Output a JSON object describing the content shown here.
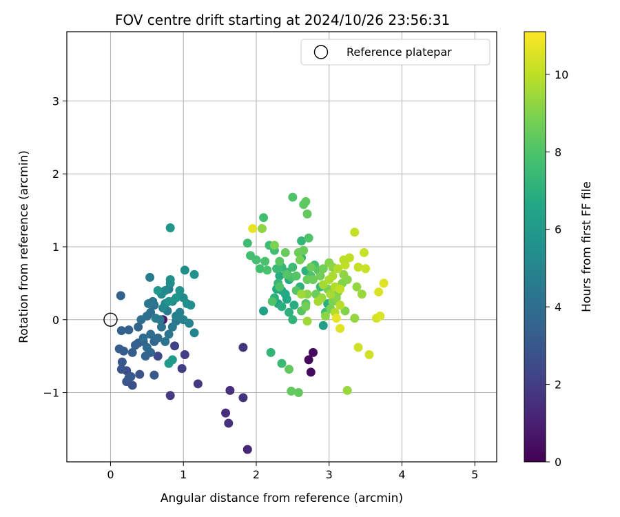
{
  "chart_data": {
    "type": "scatter",
    "title": "FOV centre drift starting at 2024/10/26 23:56:31",
    "xlabel": "Angular distance from reference (arcmin)",
    "ylabel": "Rotation from reference (arcmin)",
    "xlim": [
      -0.6,
      5.3
    ],
    "ylim": [
      -1.95,
      3.95
    ],
    "xticks": [
      0,
      1,
      2,
      3,
      4,
      5
    ],
    "yticks": [
      -1,
      0,
      1,
      2,
      3
    ],
    "xtick_labels": [
      "0",
      "1",
      "2",
      "3",
      "4",
      "5"
    ],
    "ytick_labels": [
      "−1",
      "0",
      "1",
      "2",
      "3"
    ],
    "grid": true,
    "legend": {
      "placement": "top-right",
      "entries": [
        "Reference platepar"
      ]
    },
    "reference": {
      "x": 0,
      "y": 0
    },
    "colorbar": {
      "label": "Hours from first FF file",
      "range": [
        0,
        11.1
      ],
      "ticks": [
        0,
        2,
        4,
        6,
        8,
        10
      ],
      "tick_labels": [
        "0",
        "2",
        "4",
        "6",
        "8",
        "10"
      ],
      "colormap": "viridis"
    },
    "points": [
      [
        2.72,
        -0.55,
        0.2
      ],
      [
        2.78,
        -0.45,
        0.3
      ],
      [
        2.75,
        -0.72,
        0.3
      ],
      [
        0.72,
        0.0,
        0.7
      ],
      [
        1.88,
        -1.78,
        1.2
      ],
      [
        1.58,
        -1.28,
        1.4
      ],
      [
        1.62,
        -1.42,
        1.5
      ],
      [
        1.64,
        -0.97,
        1.5
      ],
      [
        1.82,
        -1.07,
        1.6
      ],
      [
        1.82,
        -0.38,
        1.7
      ],
      [
        1.2,
        -0.88,
        1.8
      ],
      [
        0.82,
        -1.04,
        1.9
      ],
      [
        0.98,
        -0.67,
        2.0
      ],
      [
        1.02,
        -0.48,
        2.1
      ],
      [
        0.88,
        -0.36,
        2.2
      ],
      [
        0.65,
        -0.5,
        2.4
      ],
      [
        0.22,
        -0.7,
        2.6
      ],
      [
        0.3,
        -0.9,
        2.7
      ],
      [
        0.4,
        -0.75,
        2.8
      ],
      [
        0.22,
        -0.85,
        2.8
      ],
      [
        0.15,
        -0.68,
        2.9
      ],
      [
        0.16,
        -0.58,
        3.0
      ],
      [
        0.6,
        -0.76,
        3.0
      ],
      [
        0.25,
        -0.8,
        3.1
      ],
      [
        0.28,
        -0.78,
        3.2
      ],
      [
        0.18,
        -0.43,
        3.2
      ],
      [
        0.12,
        -0.4,
        3.3
      ],
      [
        0.3,
        -0.45,
        3.3
      ],
      [
        0.38,
        -0.32,
        3.4
      ],
      [
        0.34,
        -0.35,
        3.4
      ],
      [
        0.45,
        -0.3,
        3.5
      ],
      [
        0.15,
        -0.15,
        3.5
      ],
      [
        0.25,
        -0.14,
        3.5
      ],
      [
        0.14,
        0.33,
        3.5
      ],
      [
        0.38,
        -0.1,
        3.6
      ],
      [
        0.48,
        -0.5,
        3.6
      ],
      [
        0.55,
        -0.45,
        3.7
      ],
      [
        0.6,
        -0.3,
        3.7
      ],
      [
        0.5,
        -0.38,
        3.8
      ],
      [
        0.65,
        -0.25,
        3.8
      ],
      [
        0.45,
        -0.25,
        3.9
      ],
      [
        0.55,
        -0.2,
        3.9
      ],
      [
        0.42,
        0.0,
        4.0
      ],
      [
        0.5,
        0.05,
        4.0
      ],
      [
        0.6,
        0.2,
        4.1
      ],
      [
        0.55,
        0.1,
        4.1
      ],
      [
        0.7,
        -0.1,
        4.2
      ],
      [
        0.75,
        -0.3,
        4.2
      ],
      [
        0.8,
        -0.2,
        4.3
      ],
      [
        0.58,
        0.25,
        4.3
      ],
      [
        0.52,
        0.22,
        4.4
      ],
      [
        0.68,
        0.0,
        4.4
      ],
      [
        0.85,
        -0.1,
        4.5
      ],
      [
        0.9,
        -0.02,
        4.5
      ],
      [
        0.78,
        0.12,
        4.6
      ],
      [
        0.62,
        0.02,
        4.6
      ],
      [
        0.54,
        0.58,
        4.7
      ],
      [
        0.8,
        0.42,
        4.7
      ],
      [
        0.9,
        0.05,
        4.8
      ],
      [
        0.95,
        0.1,
        4.8
      ],
      [
        1.0,
        0.0,
        4.9
      ],
      [
        1.08,
        -0.05,
        4.9
      ],
      [
        1.15,
        -0.18,
        5.0
      ],
      [
        0.72,
        0.16,
        5.0
      ],
      [
        0.85,
        0.25,
        5.1
      ],
      [
        0.75,
        0.22,
        5.1
      ],
      [
        0.7,
        0.35,
        5.2
      ],
      [
        0.75,
        0.4,
        5.2
      ],
      [
        0.82,
        0.5,
        5.3
      ],
      [
        1.0,
        0.3,
        5.3
      ],
      [
        0.82,
        0.55,
        5.4
      ],
      [
        1.02,
        0.68,
        5.4
      ],
      [
        1.05,
        0.22,
        5.5
      ],
      [
        1.1,
        0.2,
        5.5
      ],
      [
        1.15,
        0.62,
        5.6
      ],
      [
        0.95,
        0.4,
        5.6
      ],
      [
        0.8,
        0.25,
        5.7
      ],
      [
        0.9,
        0.3,
        5.7
      ],
      [
        0.82,
        1.26,
        5.8
      ],
      [
        0.65,
        0.4,
        5.8
      ],
      [
        0.85,
        -0.55,
        6.0
      ],
      [
        0.8,
        -0.6,
        6.0
      ],
      [
        2.1,
        0.12,
        6.3
      ],
      [
        2.3,
        0.22,
        6.5
      ],
      [
        2.35,
        0.4,
        6.6
      ],
      [
        2.4,
        0.35,
        6.7
      ],
      [
        2.42,
        0.28,
        6.7
      ],
      [
        2.28,
        0.42,
        6.8
      ],
      [
        2.45,
        0.55,
        6.8
      ],
      [
        2.32,
        0.6,
        6.9
      ],
      [
        2.52,
        0.2,
        6.9
      ],
      [
        2.35,
        0.18,
        7.0
      ],
      [
        2.25,
        0.3,
        7.0
      ],
      [
        2.45,
        0.1,
        7.1
      ],
      [
        2.6,
        0.45,
        7.1
      ],
      [
        2.5,
        0.0,
        7.2
      ],
      [
        2.62,
        0.85,
        7.2
      ],
      [
        2.42,
        0.65,
        7.3
      ],
      [
        2.2,
        -0.45,
        7.3
      ],
      [
        2.3,
        0.5,
        7.4
      ],
      [
        2.35,
        0.72,
        7.4
      ],
      [
        2.28,
        0.7,
        7.5
      ],
      [
        2.35,
        -0.6,
        7.5
      ],
      [
        2.25,
        0.95,
        7.6
      ],
      [
        2.18,
        1.02,
        7.6
      ],
      [
        2.1,
        1.4,
        7.7
      ],
      [
        2.05,
        0.7,
        7.7
      ],
      [
        2.0,
        0.82,
        7.8
      ],
      [
        1.92,
        0.88,
        7.8
      ],
      [
        2.12,
        0.8,
        7.9
      ],
      [
        2.15,
        0.68,
        7.9
      ],
      [
        2.22,
        0.25,
        8.0
      ],
      [
        2.32,
        0.45,
        8.0
      ],
      [
        2.42,
        0.62,
        8.1
      ],
      [
        2.55,
        0.4,
        8.1
      ],
      [
        2.62,
        0.12,
        8.2
      ],
      [
        2.68,
        0.22,
        8.2
      ],
      [
        2.68,
        1.62,
        8.3
      ],
      [
        2.65,
        1.58,
        8.3
      ],
      [
        2.7,
        1.45,
        8.4
      ],
      [
        2.48,
        -0.98,
        8.4
      ],
      [
        2.58,
        -1.0,
        8.4
      ],
      [
        2.45,
        -0.68,
        8.4
      ],
      [
        2.65,
        0.95,
        8.5
      ],
      [
        2.7,
        0.55,
        8.5
      ],
      [
        2.75,
        0.72,
        8.6
      ],
      [
        2.82,
        0.35,
        8.6
      ],
      [
        2.88,
        0.6,
        8.7
      ],
      [
        2.92,
        0.7,
        8.7
      ],
      [
        2.98,
        0.42,
        8.8
      ],
      [
        3.02,
        0.15,
        8.8
      ],
      [
        3.05,
        0.25,
        8.9
      ],
      [
        3.12,
        0.38,
        8.9
      ],
      [
        3.18,
        0.5,
        9.0
      ],
      [
        3.22,
        0.12,
        9.0
      ],
      [
        3.25,
        0.55,
        9.1
      ],
      [
        3.1,
        0.3,
        9.1
      ],
      [
        2.95,
        0.05,
        9.2
      ],
      [
        3.2,
        0.62,
        9.2
      ],
      [
        3.38,
        0.45,
        9.3
      ],
      [
        3.35,
        0.02,
        9.3
      ],
      [
        3.45,
        0.35,
        9.4
      ],
      [
        3.25,
        -0.97,
        9.4
      ],
      [
        2.62,
        0.35,
        9.5
      ],
      [
        2.7,
        -0.02,
        9.5
      ],
      [
        2.85,
        0.25,
        9.6
      ],
      [
        2.92,
        0.48,
        9.6
      ],
      [
        3.0,
        0.55,
        9.7
      ],
      [
        3.05,
        0.6,
        9.7
      ],
      [
        3.08,
        0.45,
        9.8
      ],
      [
        3.12,
        0.7,
        9.8
      ],
      [
        3.15,
        0.2,
        9.9
      ],
      [
        3.2,
        0.82,
        9.9
      ],
      [
        3.22,
        0.75,
        10.0
      ],
      [
        3.28,
        0.85,
        10.0
      ],
      [
        3.35,
        1.2,
        10.1
      ],
      [
        3.4,
        0.72,
        10.1
      ],
      [
        3.48,
        0.92,
        10.2
      ],
      [
        3.5,
        0.7,
        10.2
      ],
      [
        3.4,
        -0.38,
        10.3
      ],
      [
        3.55,
        -0.48,
        10.3
      ],
      [
        3.65,
        0.02,
        10.4
      ],
      [
        3.68,
        0.38,
        10.5
      ],
      [
        3.7,
        0.05,
        10.5
      ],
      [
        3.75,
        0.5,
        10.6
      ],
      [
        3.15,
        -0.12,
        10.6
      ],
      [
        3.1,
        0.02,
        10.7
      ],
      [
        1.95,
        1.25,
        10.7
      ],
      [
        2.92,
        -0.08,
        6.2
      ],
      [
        2.95,
        0.1,
        7.6
      ],
      [
        2.75,
        0.6,
        7.9
      ],
      [
        2.85,
        0.68,
        8.2
      ],
      [
        2.62,
        1.08,
        7.3
      ],
      [
        2.72,
        1.12,
        8.0
      ],
      [
        2.8,
        0.75,
        7.7
      ],
      [
        2.88,
        0.45,
        7.4
      ],
      [
        2.5,
        1.68,
        8.0
      ],
      [
        2.68,
        0.18,
        8.7
      ],
      [
        2.9,
        0.3,
        9.4
      ],
      [
        3.02,
        0.35,
        9.6
      ],
      [
        3.08,
        0.1,
        9.8
      ],
      [
        3.15,
        0.42,
        10.1
      ],
      [
        2.98,
        0.22,
        7.0
      ],
      [
        2.58,
        0.92,
        8.6
      ],
      [
        1.88,
        1.05,
        7.6
      ],
      [
        2.08,
        1.25,
        9.2
      ],
      [
        2.25,
        1.02,
        8.9
      ],
      [
        2.32,
        0.8,
        8.2
      ],
      [
        2.4,
        0.92,
        8.5
      ],
      [
        2.5,
        0.72,
        7.6
      ],
      [
        2.55,
        0.6,
        8.1
      ],
      [
        2.48,
        0.58,
        7.8
      ],
      [
        2.6,
        0.82,
        8.8
      ],
      [
        2.68,
        0.67,
        7.1
      ],
      [
        2.78,
        0.55,
        8.6
      ],
      [
        2.7,
        0.35,
        9.1
      ],
      [
        3.0,
        0.78,
        9.0
      ],
      [
        3.05,
        0.72,
        9.2
      ]
    ]
  }
}
